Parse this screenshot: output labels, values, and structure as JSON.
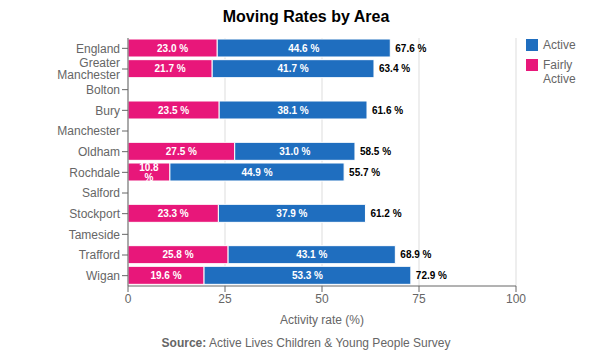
{
  "chart_data": {
    "type": "bar",
    "orientation": "horizontal",
    "stacked": true,
    "data_labels": true,
    "title": "Moving Rates by Area",
    "xlabel": "Activity rate (%)",
    "source_label": "Source:",
    "source": "Active Lives Children & Young People Survey",
    "categories": [
      "England",
      "Greater Manchester",
      "Bolton",
      "Bury",
      "Manchester",
      "Oldham",
      "Rochdale",
      "Salford",
      "Stockport",
      "Tameside",
      "Trafford",
      "Wigan"
    ],
    "series": [
      {
        "name": "Fairly\nActive",
        "color": "#E8177A",
        "values": [
          23.0,
          21.7,
          0,
          23.5,
          0,
          27.5,
          10.8,
          0,
          23.3,
          0,
          25.8,
          19.6
        ],
        "value_labels": [
          "23.0 %",
          "21.7 %",
          null,
          "23.5 %",
          null,
          "27.5 %",
          "10.8 %",
          null,
          "23.3 %",
          null,
          "25.8 %",
          "19.6 %"
        ]
      },
      {
        "name": "Active",
        "color": "#1F6EBF",
        "values": [
          44.6,
          41.7,
          0,
          38.1,
          0,
          31.0,
          44.9,
          0,
          37.9,
          0,
          43.1,
          53.3
        ],
        "value_labels": [
          "44.6 %",
          "41.7 %",
          null,
          "38.1 %",
          null,
          "31.0 %",
          "44.9 %",
          null,
          "37.9 %",
          null,
          "43.1 %",
          "53.3 %"
        ]
      }
    ],
    "totals": [
      67.6,
      63.4,
      null,
      61.6,
      null,
      58.5,
      55.7,
      null,
      61.2,
      null,
      68.9,
      72.9
    ],
    "total_labels": [
      "67.6 %",
      "63.4 %",
      null,
      "61.6 %",
      null,
      "58.5 %",
      "55.7 %",
      null,
      "61.2 %",
      null,
      "68.9 %",
      "72.9 %"
    ],
    "xlim": [
      0,
      100
    ],
    "xticks": [
      0,
      25,
      50,
      75,
      100
    ],
    "grid": true,
    "legend": "upper right"
  }
}
